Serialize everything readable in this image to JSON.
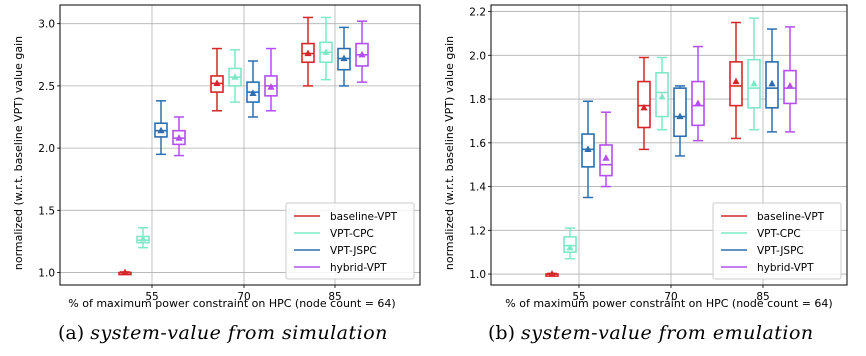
{
  "chart_data": [
    {
      "type": "box",
      "xlabel": "% of maximum power constraint on HPC (node count = 64)",
      "ylabel": "normalized (w.r.t. baseline VPT) value gain",
      "categories": [
        "55",
        "70",
        "85"
      ],
      "ylim": [
        0.9,
        3.15
      ],
      "yticks": [
        1.0,
        1.5,
        2.0,
        2.5,
        3.0
      ],
      "ytick_labels": [
        "1.0",
        "1.5",
        "2.0",
        "2.5",
        "3.0"
      ],
      "grid": true,
      "legend_position": "lower-right",
      "caption_label": "(a)",
      "caption_text": "system-value from simulation",
      "series": [
        {
          "name": "baseline-VPT",
          "color": "#d62728",
          "boxes": [
            {
              "category": "55",
              "min": 0.99,
              "q1": 0.995,
              "median": 1.0,
              "q3": 1.0,
              "max": 1.005,
              "mean": 1.0
            }
          ]
        },
        {
          "name": "VPT-CPC",
          "color": "#7fe8c8",
          "boxes": [
            {
              "category": "55",
              "min": 1.2,
              "q1": 1.24,
              "median": 1.26,
              "q3": 1.29,
              "max": 1.36,
              "mean": 1.27
            },
            {
              "category": "70",
              "min": 2.37,
              "q1": 2.5,
              "median": 2.57,
              "q3": 2.64,
              "max": 2.79,
              "mean": 2.57
            },
            {
              "category": "85",
              "min": 2.55,
              "q1": 2.69,
              "median": 2.77,
              "q3": 2.85,
              "max": 3.05,
              "mean": 2.77
            }
          ]
        },
        {
          "name": "VPT-JSPC",
          "color": "#2c6fb0",
          "boxes": [
            {
              "category": "55",
              "min": 1.95,
              "q1": 2.09,
              "median": 2.14,
              "q3": 2.2,
              "max": 2.38,
              "mean": 2.14
            },
            {
              "category": "70",
              "min": 2.25,
              "q1": 2.37,
              "median": 2.45,
              "q3": 2.53,
              "max": 2.7,
              "mean": 2.44
            },
            {
              "category": "85",
              "min": 2.5,
              "q1": 2.63,
              "median": 2.72,
              "q3": 2.8,
              "max": 2.97,
              "mean": 2.72
            }
          ]
        },
        {
          "name": "hybrid-VPT",
          "color": "#b44ef0",
          "boxes": [
            {
              "category": "55",
              "min": 1.94,
              "q1": 2.03,
              "median": 2.08,
              "q3": 2.14,
              "max": 2.25,
              "mean": 2.08
            },
            {
              "category": "70",
              "min": 2.3,
              "q1": 2.42,
              "median": 2.5,
              "q3": 2.58,
              "max": 2.8,
              "mean": 2.49
            },
            {
              "category": "85",
              "min": 2.53,
              "q1": 2.66,
              "median": 2.75,
              "q3": 2.84,
              "max": 3.02,
              "mean": 2.75
            }
          ]
        },
        {
          "name": "baseline-VPT@70_85",
          "color": "#d62728",
          "legend": false,
          "boxes": [
            {
              "category": "70",
              "min": 2.3,
              "q1": 2.45,
              "median": 2.52,
              "q3": 2.58,
              "max": 2.8,
              "mean": 2.52
            },
            {
              "category": "85",
              "min": 2.5,
              "q1": 2.69,
              "median": 2.76,
              "q3": 2.84,
              "max": 3.05,
              "mean": 2.76
            }
          ]
        }
      ]
    },
    {
      "type": "box",
      "xlabel": "% of maximum power constraint on HPC (node count = 64)",
      "ylabel": "normalized (w.r.t. baseline VPT) value gain",
      "categories": [
        "55",
        "70",
        "85"
      ],
      "ylim": [
        0.95,
        2.23
      ],
      "yticks": [
        1.0,
        1.2,
        1.4,
        1.6,
        1.8,
        2.0,
        2.2
      ],
      "ytick_labels": [
        "1.0",
        "1.2",
        "1.4",
        "1.6",
        "1.8",
        "2.0",
        "2.2"
      ],
      "grid": true,
      "legend_position": "lower-right",
      "caption_label": "(b)",
      "caption_text": "system-value from emulation",
      "series": [
        {
          "name": "baseline-VPT",
          "color": "#d62728",
          "boxes": [
            {
              "category": "55",
              "min": 0.995,
              "q1": 0.997,
              "median": 1.0,
              "q3": 1.0,
              "max": 1.003,
              "mean": 1.0
            },
            {
              "category": "70",
              "min": 1.57,
              "q1": 1.67,
              "median": 1.77,
              "q3": 1.88,
              "max": 1.99,
              "mean": 1.76
            },
            {
              "category": "85",
              "min": 1.62,
              "q1": 1.77,
              "median": 1.86,
              "q3": 1.97,
              "max": 2.15,
              "mean": 1.88
            }
          ]
        },
        {
          "name": "VPT-CPC",
          "color": "#7fe8c8",
          "boxes": [
            {
              "category": "55",
              "min": 1.07,
              "q1": 1.1,
              "median": 1.13,
              "q3": 1.17,
              "max": 1.21,
              "mean": 1.12
            },
            {
              "category": "70",
              "min": 1.66,
              "q1": 1.72,
              "median": 1.83,
              "q3": 1.92,
              "max": 1.99,
              "mean": 1.81
            },
            {
              "category": "85",
              "min": 1.66,
              "q1": 1.76,
              "median": 1.85,
              "q3": 1.98,
              "max": 2.17,
              "mean": 1.87
            }
          ]
        },
        {
          "name": "VPT-JSPC",
          "color": "#2c6fb0",
          "boxes": [
            {
              "category": "55",
              "min": 1.35,
              "q1": 1.49,
              "median": 1.57,
              "q3": 1.64,
              "max": 1.79,
              "mean": 1.57
            },
            {
              "category": "70",
              "min": 1.54,
              "q1": 1.63,
              "median": 1.72,
              "q3": 1.85,
              "max": 1.86,
              "mean": 1.72
            },
            {
              "category": "85",
              "min": 1.65,
              "q1": 1.76,
              "median": 1.85,
              "q3": 1.97,
              "max": 2.12,
              "mean": 1.87
            }
          ]
        },
        {
          "name": "hybrid-VPT",
          "color": "#b44ef0",
          "boxes": [
            {
              "category": "55",
              "min": 1.4,
              "q1": 1.45,
              "median": 1.5,
              "q3": 1.59,
              "max": 1.74,
              "mean": 1.53
            },
            {
              "category": "70",
              "min": 1.61,
              "q1": 1.68,
              "median": 1.77,
              "q3": 1.88,
              "max": 2.04,
              "mean": 1.78
            },
            {
              "category": "85",
              "min": 1.65,
              "q1": 1.78,
              "median": 1.85,
              "q3": 1.93,
              "max": 2.13,
              "mean": 1.86
            }
          ]
        }
      ]
    }
  ]
}
